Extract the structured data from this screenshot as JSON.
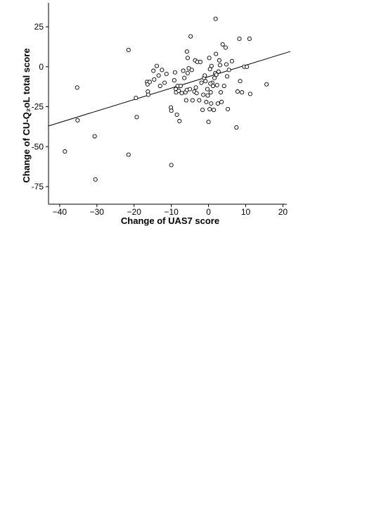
{
  "chart_data": {
    "type": "scatter",
    "xlabel": "Change of UAS7 score",
    "ylabel": "Change of CU-Q₂oL total score",
    "xlim": [
      -43,
      22
    ],
    "ylim": [
      -86,
      40
    ],
    "xticks": [
      -40,
      -30,
      -20,
      -10,
      0,
      10,
      20
    ],
    "yticks": [
      25,
      0,
      -25,
      -50,
      -75
    ],
    "xtick_labels": [
      "−40",
      "−30",
      "−20",
      "−10",
      "0",
      "10",
      "20"
    ],
    "ytick_labels": [
      "25",
      "0",
      "-25",
      "-50",
      "-75"
    ],
    "grid": false,
    "legend": "none",
    "trendline": {
      "intercept": -6.2,
      "slope": 0.717
    },
    "points": [
      [
        -38.6,
        -53
      ],
      [
        -35.3,
        -13
      ],
      [
        -35.2,
        -33.5
      ],
      [
        -30.6,
        -43.5
      ],
      [
        -30.4,
        -70.5
      ],
      [
        -21.5,
        10.5
      ],
      [
        -21.5,
        -55
      ],
      [
        -19.5,
        -19.5
      ],
      [
        -19.3,
        -31.5
      ],
      [
        -16.5,
        -9.5
      ],
      [
        -16.4,
        -11
      ],
      [
        -16.3,
        -15.5
      ],
      [
        -16.2,
        -17.5
      ],
      [
        -15.8,
        -9.5
      ],
      [
        -14.8,
        -2.5
      ],
      [
        -14.6,
        -8
      ],
      [
        -13.9,
        0.5
      ],
      [
        -13.4,
        -5.5
      ],
      [
        -13,
        -12
      ],
      [
        -12.5,
        -2
      ],
      [
        -11.8,
        -10
      ],
      [
        -11.3,
        -4.5
      ],
      [
        -10.1,
        -25.5
      ],
      [
        -10,
        -27.5
      ],
      [
        -10,
        -61.5
      ],
      [
        -9.2,
        -8.5
      ],
      [
        -9,
        -3.5
      ],
      [
        -8.8,
        -14
      ],
      [
        -8.7,
        -16
      ],
      [
        -8.5,
        -30
      ],
      [
        -8.3,
        -12
      ],
      [
        -8,
        -15
      ],
      [
        -7.8,
        -34
      ],
      [
        -7.5,
        -12
      ],
      [
        -7.2,
        -16.5
      ],
      [
        -6.8,
        -2.5
      ],
      [
        -6.5,
        -7
      ],
      [
        -6.2,
        -16
      ],
      [
        -6,
        -21
      ],
      [
        -5.8,
        -14.5
      ],
      [
        -5.6,
        -4
      ],
      [
        -5.8,
        9.5
      ],
      [
        -5.6,
        5.5
      ],
      [
        -5.3,
        -1
      ],
      [
        -5,
        -14
      ],
      [
        -4.5,
        -2
      ],
      [
        -4.8,
        19
      ],
      [
        -4.3,
        -21
      ],
      [
        -3.8,
        -15.5
      ],
      [
        -3.6,
        4
      ],
      [
        -3.4,
        -13
      ],
      [
        -3.2,
        -16.5
      ],
      [
        -3,
        3
      ],
      [
        -2.5,
        -21
      ],
      [
        -2.2,
        3
      ],
      [
        -1.9,
        -10
      ],
      [
        -1.6,
        -27
      ],
      [
        -1.4,
        -17.5
      ],
      [
        -1.2,
        -7
      ],
      [
        -1,
        -5.5
      ],
      [
        -0.8,
        -9
      ],
      [
        -0.6,
        -22
      ],
      [
        -0.3,
        -14
      ],
      [
        -0.2,
        -18
      ],
      [
        0,
        -34.5
      ],
      [
        0.2,
        5.5
      ],
      [
        0.4,
        -1.5
      ],
      [
        0.6,
        -16
      ],
      [
        0.8,
        0.5
      ],
      [
        1,
        -10
      ],
      [
        1.2,
        -12
      ],
      [
        0.3,
        -26.5
      ],
      [
        0.5,
        -10.5
      ],
      [
        0.7,
        -23
      ],
      [
        1.4,
        -27
      ],
      [
        1.6,
        -7
      ],
      [
        1.8,
        -4
      ],
      [
        1.9,
        30
      ],
      [
        2,
        8
      ],
      [
        2.1,
        -5
      ],
      [
        2.3,
        -11.5
      ],
      [
        2.5,
        -23
      ],
      [
        2.7,
        -3
      ],
      [
        2.9,
        4
      ],
      [
        3.1,
        1
      ],
      [
        3.3,
        -16
      ],
      [
        3.5,
        -22
      ],
      [
        3.8,
        14
      ],
      [
        4.2,
        -12
      ],
      [
        4.6,
        12
      ],
      [
        4.8,
        1.5
      ],
      [
        5,
        -6
      ],
      [
        5.2,
        -26.5
      ],
      [
        5.5,
        -2
      ],
      [
        6.3,
        3.5
      ],
      [
        7.8,
        -15.5
      ],
      [
        7.5,
        -38
      ],
      [
        8.3,
        17.5
      ],
      [
        8.5,
        -9
      ],
      [
        9,
        -16
      ],
      [
        9.6,
        0
      ],
      [
        10.3,
        0
      ],
      [
        11,
        17.5
      ],
      [
        11.2,
        -17
      ],
      [
        15.6,
        -11
      ]
    ]
  }
}
